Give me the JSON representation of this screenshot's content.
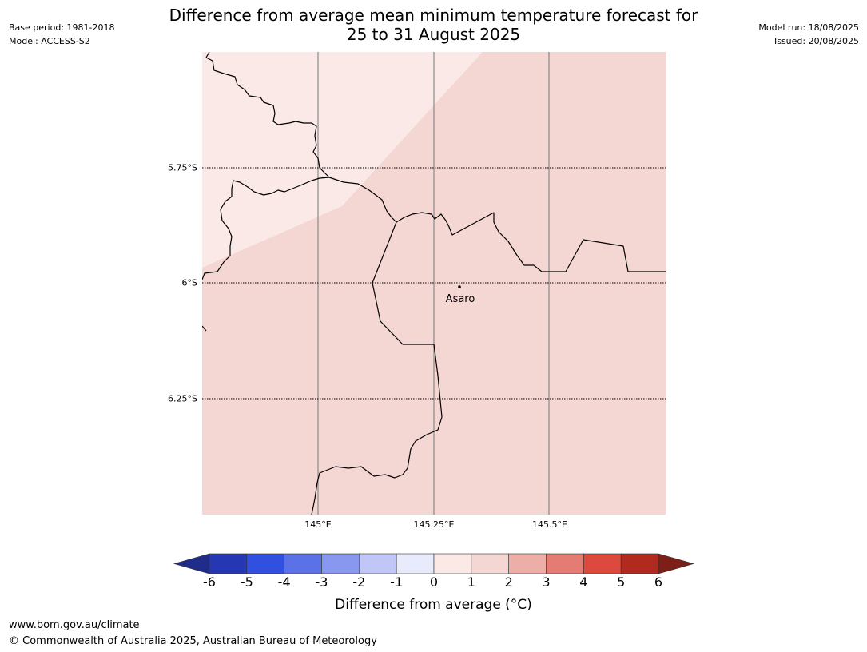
{
  "title": {
    "line1": "Difference from average mean minimum temperature forecast for",
    "line2": "25 to 31 August 2025"
  },
  "meta_left": {
    "base_period": "Base period: 1981-2018",
    "model": "Model: ACCESS-S2"
  },
  "meta_right": {
    "model_run": "Model run: 18/08/2025",
    "issued": "Issued: 20/08/2025"
  },
  "map": {
    "lat_labels": [
      "5.75°S",
      "6°S",
      "6.25°S"
    ],
    "lon_labels": [
      "145°E",
      "145.25°E",
      "145.5°E"
    ],
    "place_name": "Asaro",
    "colors": {
      "band_0_1": "#fbe9e7",
      "band_1_2": "#f4d6d2",
      "coastline": "#000000",
      "gridline_meridian": "#8a8a8a"
    }
  },
  "colorbar": {
    "ticks": [
      "-6",
      "-5",
      "-4",
      "-3",
      "-2",
      "-1",
      "0",
      "1",
      "2",
      "3",
      "4",
      "5",
      "6"
    ],
    "colors": [
      "#1f2c8a",
      "#2637b4",
      "#3150e0",
      "#5b72e6",
      "#8898ee",
      "#c0c7f7",
      "#e8ebfc",
      "#fbe9e7",
      "#f4d6d2",
      "#eeaea8",
      "#e57c74",
      "#db4a3d",
      "#b12a1f",
      "#7c1f18"
    ],
    "label": "Difference from average (°C)"
  },
  "footer": {
    "url": "www.bom.gov.au/climate",
    "copyright": "© Commonwealth of Australia 2025, Australian Bureau of Meteorology"
  }
}
